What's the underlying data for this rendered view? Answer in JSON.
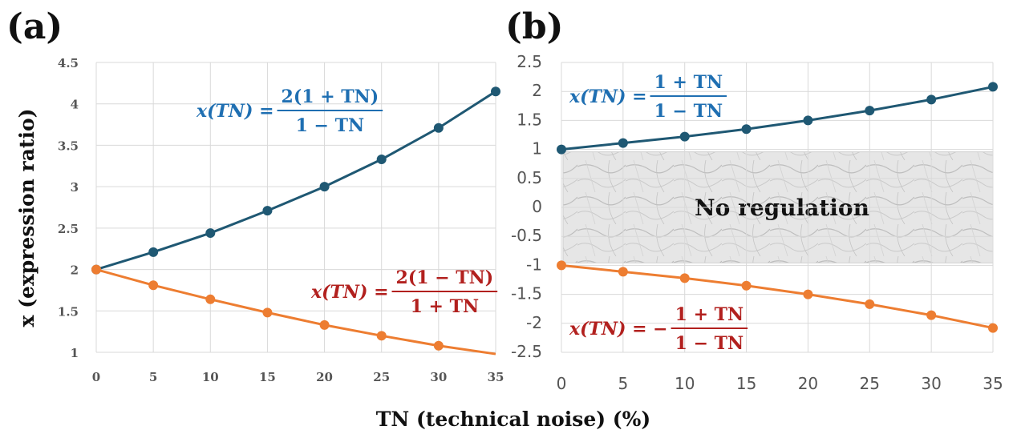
{
  "xlabel": "TN (technical noise) (%)",
  "ylabel": "x (expression ratio)",
  "colors": {
    "upper": "#1f5873",
    "lower": "#ed7d31",
    "formula_blue": "#1f6fb2",
    "formula_red": "#b2201e"
  },
  "chart_data": [
    {
      "panel": "(a)",
      "type": "line",
      "x": [
        0,
        5,
        10,
        15,
        20,
        25,
        30,
        35
      ],
      "xticks": [
        "0",
        "5",
        "10",
        "15",
        "20",
        "25",
        "30",
        "35"
      ],
      "yticks": [
        "1",
        "1.5",
        "2",
        "2.5",
        "3",
        "3.5",
        "4",
        "4.5"
      ],
      "xlim": [
        0,
        35
      ],
      "ylim": [
        1,
        4.5
      ],
      "grid": true,
      "series": [
        {
          "values": [
            2.0,
            2.21,
            2.44,
            2.71,
            3.0,
            3.33,
            3.71,
            4.15
          ],
          "formula": {
            "lhs": "x(TN) = ",
            "num": "2(1 + TN)",
            "den": "1 − TN"
          }
        },
        {
          "values": [
            2.0,
            1.81,
            1.64,
            1.48,
            1.33,
            1.2,
            1.08,
            0.96
          ],
          "formula": {
            "lhs": "x(TN) = ",
            "num": "2(1 − TN)",
            "den": "1 + TN"
          }
        }
      ]
    },
    {
      "panel": "(b)",
      "type": "line",
      "x": [
        0,
        5,
        10,
        15,
        20,
        25,
        30,
        35
      ],
      "xticks": [
        "0",
        "5",
        "10",
        "15",
        "20",
        "25",
        "30",
        "35"
      ],
      "yticks": [
        "-2.5",
        "-2",
        "-1.5",
        "-1",
        "-0.5",
        "0",
        "0.5",
        "1",
        "1.5",
        "2",
        "2.5"
      ],
      "xlim": [
        0,
        35
      ],
      "ylim": [
        -2.5,
        2.5
      ],
      "grid": true,
      "region": {
        "label": "No regulation",
        "y_range": [
          -1,
          1
        ]
      },
      "series": [
        {
          "values": [
            1.0,
            1.11,
            1.22,
            1.35,
            1.5,
            1.67,
            1.86,
            2.08
          ],
          "formula": {
            "lhs": "x(TN) = ",
            "num": "1 + TN",
            "den": "1 − TN"
          }
        },
        {
          "values": [
            -1.0,
            -1.11,
            -1.22,
            -1.35,
            -1.5,
            -1.67,
            -1.86,
            -2.08
          ],
          "formula": {
            "lhs": "x(TN) = −",
            "num": "1 + TN",
            "den": "1 − TN"
          }
        }
      ]
    }
  ]
}
